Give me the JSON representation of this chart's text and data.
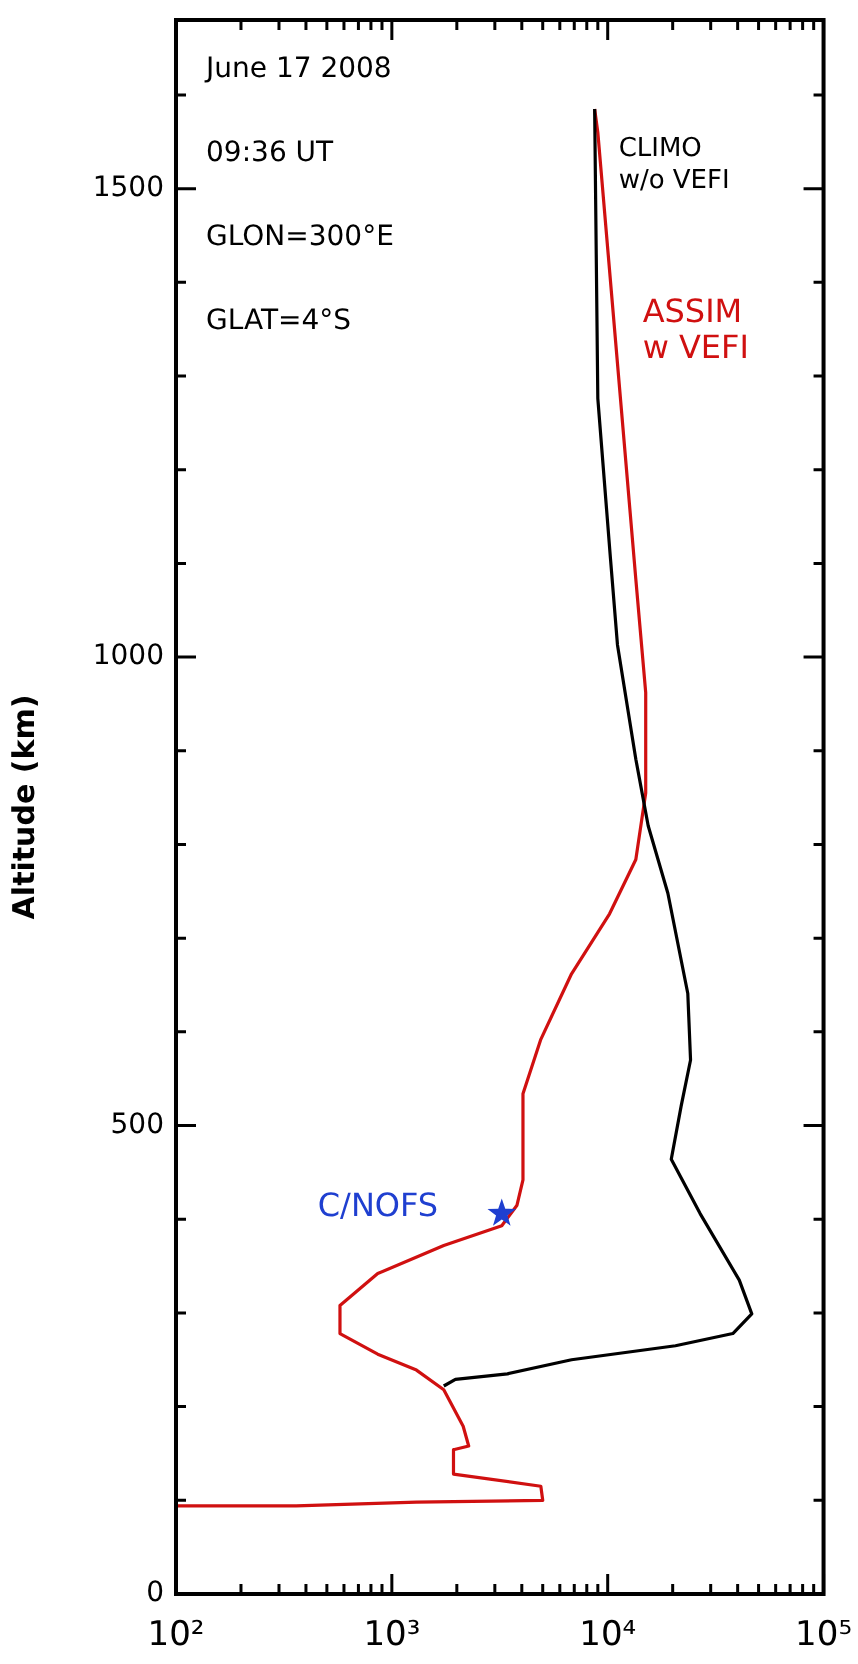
{
  "chart_data": {
    "type": "line",
    "ylabel": "Altitude (km)",
    "log": "x",
    "grid": false,
    "legend": false,
    "xlim": [
      100,
      100000
    ],
    "ylim": [
      0,
      1680
    ],
    "xticks": [
      {
        "value": 100,
        "label": "10²"
      },
      {
        "value": 200,
        "label": null
      },
      {
        "value": 300,
        "label": null
      },
      {
        "value": 400,
        "label": null
      },
      {
        "value": 500,
        "label": null
      },
      {
        "value": 600,
        "label": null
      },
      {
        "value": 700,
        "label": null
      },
      {
        "value": 800,
        "label": null
      },
      {
        "value": 900,
        "label": null
      },
      {
        "value": 1000,
        "label": "10³"
      },
      {
        "value": 2000,
        "label": null
      },
      {
        "value": 3000,
        "label": null
      },
      {
        "value": 4000,
        "label": null
      },
      {
        "value": 5000,
        "label": null
      },
      {
        "value": 6000,
        "label": null
      },
      {
        "value": 7000,
        "label": null
      },
      {
        "value": 8000,
        "label": null
      },
      {
        "value": 9000,
        "label": null
      },
      {
        "value": 10000,
        "label": "10⁴"
      },
      {
        "value": 20000,
        "label": null
      },
      {
        "value": 30000,
        "label": null
      },
      {
        "value": 40000,
        "label": null
      },
      {
        "value": 50000,
        "label": null
      },
      {
        "value": 60000,
        "label": null
      },
      {
        "value": 70000,
        "label": null
      },
      {
        "value": 80000,
        "label": null
      },
      {
        "value": 90000,
        "label": null
      },
      {
        "value": 100000,
        "label": "10⁵"
      }
    ],
    "yticks": [
      0,
      {
        "value": 100,
        "label": null
      },
      {
        "value": 200,
        "label": null
      },
      {
        "value": 300,
        "label": null
      },
      {
        "value": 400,
        "label": null
      },
      500,
      {
        "value": 600,
        "label": null
      },
      {
        "value": 700,
        "label": null
      },
      {
        "value": 800,
        "label": null
      },
      {
        "value": 900,
        "label": null
      },
      1000,
      {
        "value": 1100,
        "label": null
      },
      {
        "value": 1200,
        "label": null
      },
      {
        "value": 1300,
        "label": null
      },
      {
        "value": 1400,
        "label": null
      },
      1500,
      {
        "value": 1600,
        "label": null
      }
    ],
    "annotations": [
      "June 17 2008",
      "09:36 UT",
      "GLON=300°E",
      "GLAT=4°S"
    ],
    "series": [
      {
        "name": "CLIMO w/o VEFI",
        "color": "#000000",
        "marker": "none",
        "line_style": "solid",
        "x": [
          8700,
          9000,
          10300,
          11100,
          13500,
          15400,
          19000,
          23500,
          24200,
          21900,
          19700,
          26800,
          40700,
          46500,
          38000,
          20600,
          6800,
          3430,
          1970,
          1740
        ],
        "values": [
          1585,
          1276,
          1105,
          1013,
          891,
          820,
          748,
          641,
          570,
          521,
          464,
          406,
          335,
          299,
          278,
          265,
          250,
          235,
          229,
          222
        ]
      },
      {
        "name": "ASSIM w VEFI",
        "color": "#d01010",
        "marker": "none",
        "line_style": "solid",
        "x": [
          8700,
          9000,
          13500,
          15000,
          15000,
          13500,
          10200,
          6800,
          4900,
          4050,
          4050,
          3800,
          3230,
          1740,
          860,
          575,
          575,
          860,
          1300,
          1740,
          2140,
          2270,
          1930,
          1930,
          4900,
          5000,
          1300,
          360,
          100
        ],
        "values": [
          1585,
          1560,
          1083,
          962,
          855,
          784,
          726,
          662,
          592,
          534,
          442,
          415,
          393,
          372,
          342,
          308,
          278,
          256,
          239,
          218,
          179,
          158,
          154,
          128,
          115,
          100,
          98,
          94,
          94
        ]
      },
      {
        "name": "C/NOFS",
        "type": "scatter",
        "color": "#1f3fd0",
        "marker": "star",
        "x": [
          3230
        ],
        "values": [
          406
        ]
      }
    ]
  }
}
